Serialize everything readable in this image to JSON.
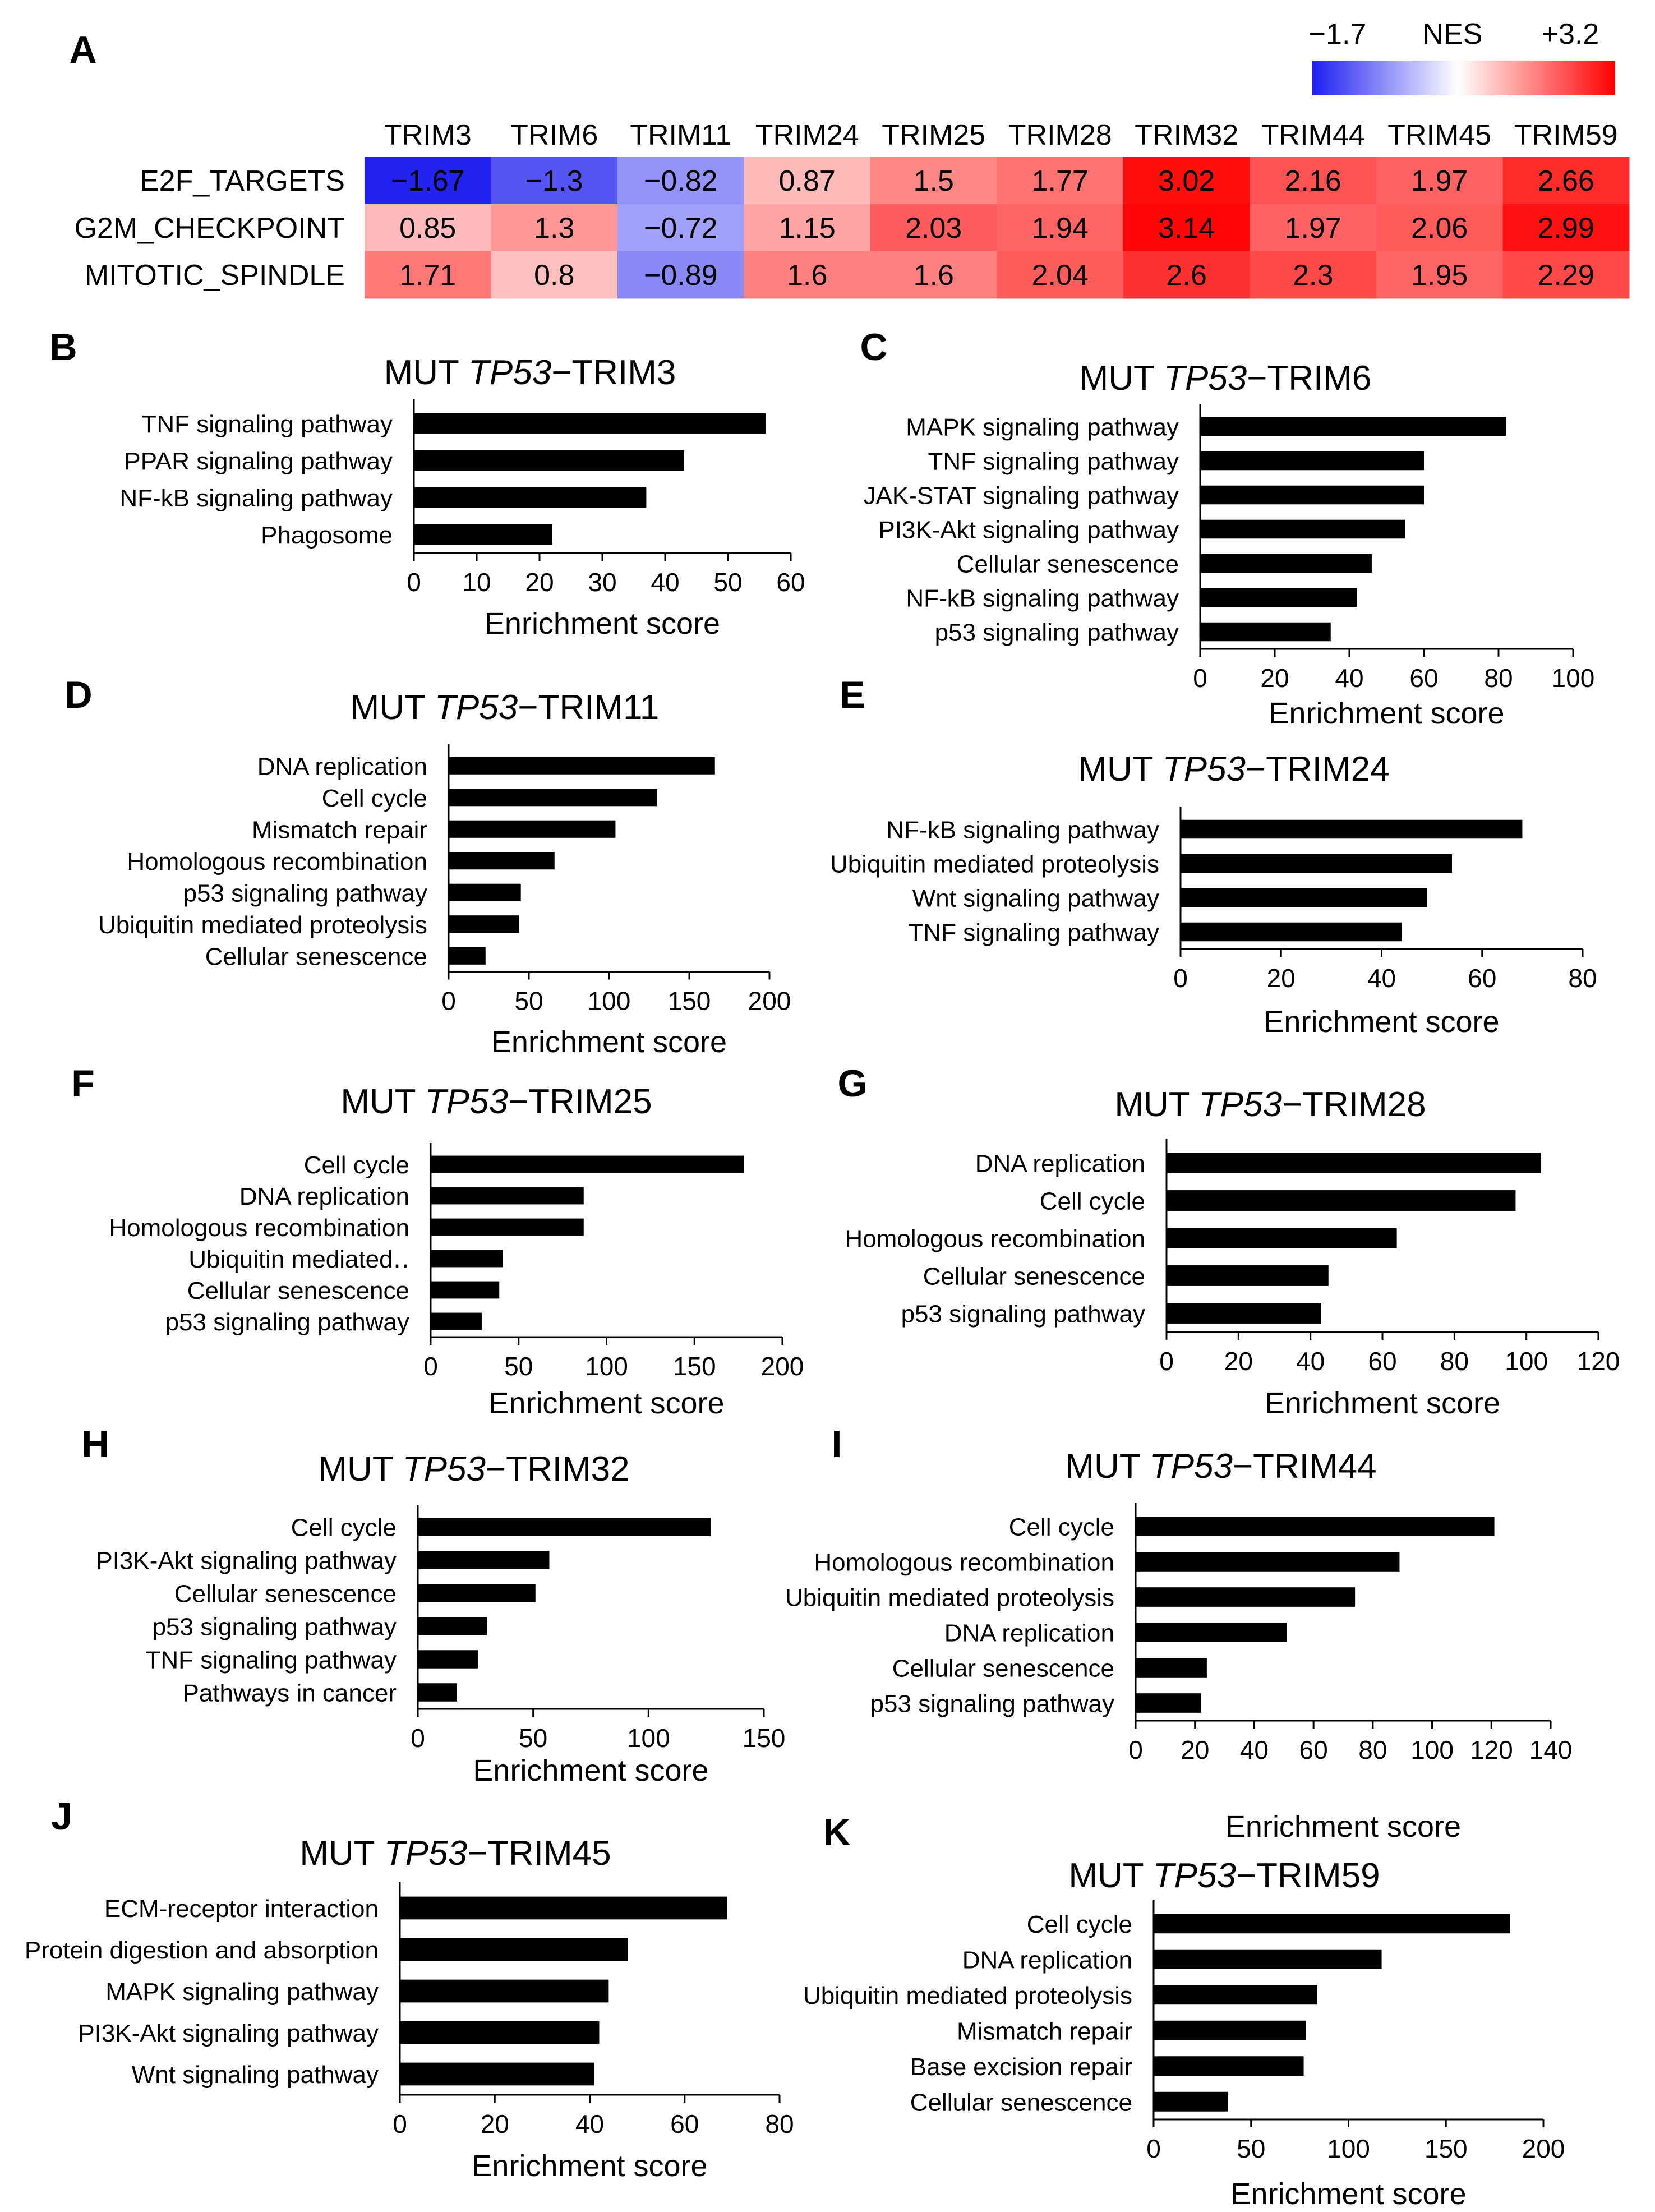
{
  "chart_data": [
    {
      "type": "heatmap",
      "panel": "A",
      "title": "",
      "legend": {
        "label": "NES",
        "min_label": "−1.7",
        "max_label": "+3.2",
        "min": -1.7,
        "max": 3.2,
        "colors": [
          "#1f1ff0",
          "#ffffff",
          "#ff0000"
        ]
      },
      "columns": [
        "TRIM3",
        "TRIM6",
        "TRIM11",
        "TRIM24",
        "TRIM25",
        "TRIM28",
        "TRIM32",
        "TRIM44",
        "TRIM45",
        "TRIM59"
      ],
      "rows": [
        "E2F_TARGETS",
        "G2M_CHECKPOINT",
        "MITOTIC_SPINDLE"
      ],
      "values": [
        [
          -1.67,
          -1.3,
          -0.82,
          0.87,
          1.5,
          1.77,
          3.02,
          2.16,
          1.97,
          2.66
        ],
        [
          0.85,
          1.3,
          -0.72,
          1.15,
          2.03,
          1.94,
          3.14,
          1.97,
          2.06,
          2.99
        ],
        [
          1.71,
          0.8,
          -0.89,
          1.6,
          1.6,
          2.04,
          2.6,
          2.3,
          1.95,
          2.29
        ]
      ],
      "labels": [
        [
          "−1.67",
          "−1.3",
          "−0.82",
          "0.87",
          "1.5",
          "1.77",
          "3.02",
          "2.16",
          "1.97",
          "2.66"
        ],
        [
          "0.85",
          "1.3",
          "−0.72",
          "1.15",
          "2.03",
          "1.94",
          "3.14",
          "1.97",
          "2.06",
          "2.99"
        ],
        [
          "1.71",
          "0.8",
          "−0.89",
          "1.6",
          "1.6",
          "2.04",
          "2.6",
          "2.3",
          "1.95",
          "2.29"
        ]
      ]
    },
    {
      "type": "bar",
      "panel": "B",
      "title_prefix": "MUT ",
      "title_gene": "TP53",
      "title_suffix": "−TRIM3",
      "xlabel": "Enrichment score",
      "xlim": [
        0,
        60
      ],
      "xticks": [
        0,
        10,
        20,
        30,
        40,
        50,
        60
      ],
      "categories": [
        "TNF signaling pathway",
        "PPAR signaling pathway",
        "NF-kB signaling pathway",
        "Phagosome"
      ],
      "values": [
        56,
        43,
        37,
        22
      ]
    },
    {
      "type": "bar",
      "panel": "C",
      "title_prefix": "MUT ",
      "title_gene": "TP53",
      "title_suffix": "−TRIM6",
      "xlabel": "Enrichment score",
      "xlim": [
        0,
        100
      ],
      "xticks": [
        0,
        20,
        40,
        60,
        80,
        100
      ],
      "categories": [
        "MAPK signaling pathway",
        "TNF signaling pathway",
        "JAK-STAT signaling pathway",
        "PI3K-Akt signaling pathway",
        "Cellular senescence",
        "NF-kB signaling pathway",
        "p53 signaling pathway"
      ],
      "values": [
        82,
        60,
        60,
        55,
        46,
        42,
        35
      ]
    },
    {
      "type": "bar",
      "panel": "D",
      "title_prefix": "MUT ",
      "title_gene": "TP53",
      "title_suffix": "−TRIM11",
      "xlabel": "Enrichment score",
      "xlim": [
        0,
        200
      ],
      "xticks": [
        0,
        50,
        100,
        150,
        200
      ],
      "categories": [
        "DNA replication",
        "Cell cycle",
        "Mismatch repair",
        "Homologous recombination",
        "p53 signaling pathway",
        "Ubiquitin mediated proteolysis",
        "Cellular senescence"
      ],
      "values": [
        166,
        130,
        104,
        66,
        45,
        44,
        23
      ]
    },
    {
      "type": "bar",
      "panel": "E",
      "title_prefix": "MUT ",
      "title_gene": "TP53",
      "title_suffix": "−TRIM24",
      "xlabel": "Enrichment score",
      "xlim": [
        0,
        80
      ],
      "xticks": [
        0,
        20,
        40,
        60,
        80
      ],
      "categories": [
        "NF-kB signaling pathway",
        "Ubiquitin mediated proteolysis",
        "Wnt signaling pathway",
        "TNF signaling pathway"
      ],
      "values": [
        68,
        54,
        49,
        44
      ]
    },
    {
      "type": "bar",
      "panel": "F",
      "title_prefix": "MUT ",
      "title_gene": "TP53",
      "title_suffix": "−TRIM25",
      "xlabel": "Enrichment score",
      "xlim": [
        0,
        200
      ],
      "xticks": [
        0,
        50,
        100,
        150,
        200
      ],
      "categories": [
        "Cell cycle",
        "DNA replication",
        "Homologous recombination",
        "Ubiquitin mediated‥",
        "Cellular senescence",
        "p53 signaling pathway"
      ],
      "values": [
        178,
        87,
        87,
        41,
        39,
        29
      ]
    },
    {
      "type": "bar",
      "panel": "G",
      "title_prefix": "MUT ",
      "title_gene": "TP53",
      "title_suffix": "−TRIM28",
      "xlabel": "Enrichment score",
      "xlim": [
        0,
        120
      ],
      "xticks": [
        0,
        20,
        40,
        60,
        80,
        100,
        120
      ],
      "categories": [
        "DNA replication",
        "Cell cycle",
        "Homologous recombination",
        "Cellular senescence",
        "p53 signaling pathway"
      ],
      "values": [
        104,
        97,
        64,
        45,
        43
      ]
    },
    {
      "type": "bar",
      "panel": "H",
      "title_prefix": "MUT ",
      "title_gene": "TP53",
      "title_suffix": "−TRIM32",
      "xlabel": "Enrichment score",
      "xlim": [
        0,
        150
      ],
      "xticks": [
        0,
        50,
        100,
        150
      ],
      "categories": [
        "Cell cycle",
        "PI3K-Akt signaling pathway",
        "Cellular senescence",
        "p53 signaling pathway",
        "TNF signaling pathway",
        "Pathways in cancer"
      ],
      "values": [
        127,
        57,
        51,
        30,
        26,
        17
      ]
    },
    {
      "type": "bar",
      "panel": "I",
      "title_prefix": "MUT ",
      "title_gene": "TP53",
      "title_suffix": "−TRIM44",
      "xlabel": "Enrichment score",
      "xlim": [
        0,
        140
      ],
      "xticks": [
        0,
        20,
        40,
        60,
        80,
        100,
        120,
        140
      ],
      "categories": [
        "Cell cycle",
        "Homologous recombination",
        "Ubiquitin mediated proteolysis",
        "DNA replication",
        "Cellular senescence",
        "p53 signaling pathway"
      ],
      "values": [
        121,
        89,
        74,
        51,
        24,
        22
      ]
    },
    {
      "type": "bar",
      "panel": "J",
      "title_prefix": "MUT ",
      "title_gene": "TP53",
      "title_suffix": "−TRIM45",
      "xlabel": "Enrichment score",
      "xlim": [
        0,
        80
      ],
      "xticks": [
        0,
        20,
        40,
        60,
        80
      ],
      "categories": [
        "ECM-receptor interaction",
        "Protein digestion and absorption",
        "MAPK signaling pathway",
        "PI3K-Akt signaling pathway",
        "Wnt signaling pathway"
      ],
      "values": [
        69,
        48,
        44,
        42,
        41
      ]
    },
    {
      "type": "bar",
      "panel": "K",
      "title_prefix": "MUT ",
      "title_gene": "TP53",
      "title_suffix": "−TRIM59",
      "xlabel": "Enrichment score",
      "xlim": [
        0,
        200
      ],
      "xticks": [
        0,
        50,
        100,
        150,
        200
      ],
      "categories": [
        "Cell cycle",
        "DNA replication",
        "Ubiquitin mediated proteolysis",
        "Mismatch repair",
        "Base excision repair",
        "Cellular senescence"
      ],
      "values": [
        183,
        117,
        84,
        78,
        77,
        38
      ]
    }
  ]
}
